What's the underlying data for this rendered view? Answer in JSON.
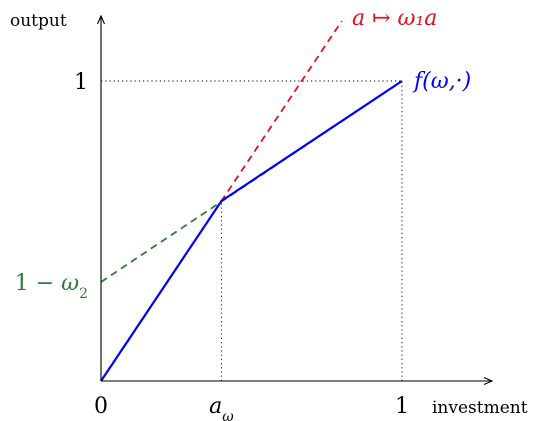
{
  "chart_data": {
    "type": "line",
    "xlabel": "investment",
    "ylabel": "output",
    "xlim": [
      0,
      1
    ],
    "ylim": [
      0,
      1
    ],
    "grid": false,
    "x_ticks": [
      {
        "value": 0,
        "label": "0"
      },
      {
        "value": 0.4,
        "label": "a_ω"
      },
      {
        "value": 1,
        "label": "1"
      }
    ],
    "y_ticks": [
      {
        "value": 1,
        "label": "1"
      },
      {
        "value": 0.33,
        "label": "1 − ω₂"
      }
    ],
    "series": [
      {
        "name": "f(ω,·)",
        "style": "solid",
        "color": "#0000ff",
        "x": [
          0,
          0.4,
          1
        ],
        "y": [
          0,
          0.6,
          1
        ]
      },
      {
        "name": "a ↦ ω₁a",
        "style": "dashed",
        "color": "#e0141e",
        "x": [
          0,
          0.8
        ],
        "y": [
          0,
          1.2
        ]
      },
      {
        "name": "",
        "style": "dashed",
        "color": "#2e7d32",
        "x": [
          0,
          1
        ],
        "y": [
          0.33,
          1
        ]
      }
    ],
    "guides": [
      {
        "from": [
          0,
          1
        ],
        "to": [
          1,
          1
        ]
      },
      {
        "from": [
          1,
          0
        ],
        "to": [
          1,
          1
        ]
      },
      {
        "from": [
          0.4,
          0
        ],
        "to": [
          0.4,
          0.6
        ]
      }
    ]
  }
}
